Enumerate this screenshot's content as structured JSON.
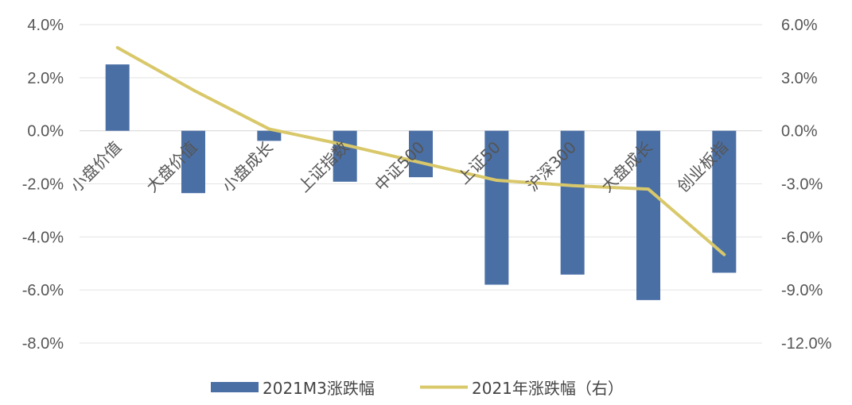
{
  "chart_data": {
    "type": "bar+line",
    "categories": [
      "小盘价值",
      "大盘价值",
      "小盘成长",
      "上证指数",
      "中证500",
      "上证50",
      "沪深300",
      "大盘成长",
      "创业板指"
    ],
    "series": [
      {
        "name": "2021M3涨跌幅",
        "type": "bar",
        "axis": "left",
        "color": "#4a6fa5",
        "values": [
          2.5,
          -2.35,
          -0.38,
          -1.92,
          -1.75,
          -5.8,
          -5.42,
          -6.38,
          -5.35
        ]
      },
      {
        "name": "2021年涨跌幅（右）",
        "type": "line",
        "axis": "right",
        "color": "#d9c86a",
        "values": [
          4.7,
          2.3,
          0.1,
          -0.8,
          -1.8,
          -2.8,
          -3.1,
          -3.3,
          -7.0
        ]
      }
    ],
    "y_left": {
      "ylim": [
        -8,
        4
      ],
      "ticks": [
        "4.0%",
        "2.0%",
        "0.0%",
        "-2.0%",
        "-4.0%",
        "-6.0%",
        "-8.0%"
      ]
    },
    "y_right": {
      "ylim": [
        -12,
        6
      ],
      "ticks": [
        "6.0%",
        "3.0%",
        "0.0%",
        "-3.0%",
        "-6.0%",
        "-9.0%",
        "-12.0%"
      ]
    },
    "title": "",
    "xlabel": "",
    "ylabel": "",
    "grid": true,
    "legend_position": "bottom"
  }
}
